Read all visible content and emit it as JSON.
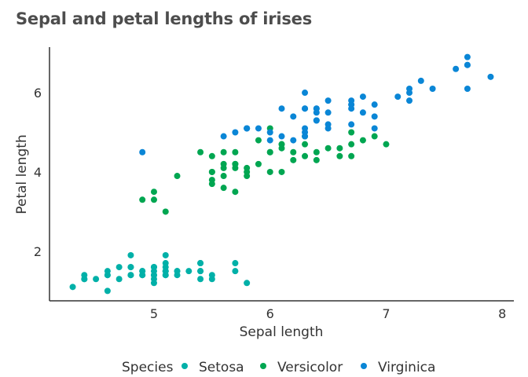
{
  "chart_data": {
    "type": "scatter",
    "title": "Sepal and petal lengths of irises",
    "xlabel": "Sepal length",
    "ylabel": "Petal length",
    "xlim": [
      4.1,
      8.1
    ],
    "ylim": [
      0.75,
      7.15
    ],
    "x_ticks": [
      5,
      6,
      7,
      8
    ],
    "y_ticks": [
      2,
      4,
      6
    ],
    "grid": false,
    "legend": {
      "title": "Species",
      "placement": "bottom"
    },
    "series": [
      {
        "name": "Setosa",
        "color": "#00b0a8",
        "points": [
          [
            5.1,
            1.4
          ],
          [
            4.9,
            1.4
          ],
          [
            4.7,
            1.3
          ],
          [
            4.6,
            1.5
          ],
          [
            5.0,
            1.4
          ],
          [
            5.4,
            1.7
          ],
          [
            4.6,
            1.4
          ],
          [
            5.0,
            1.5
          ],
          [
            4.4,
            1.4
          ],
          [
            4.9,
            1.5
          ],
          [
            5.4,
            1.5
          ],
          [
            4.8,
            1.6
          ],
          [
            4.8,
            1.4
          ],
          [
            4.3,
            1.1
          ],
          [
            5.8,
            1.2
          ],
          [
            5.7,
            1.5
          ],
          [
            5.4,
            1.3
          ],
          [
            5.1,
            1.4
          ],
          [
            5.7,
            1.7
          ],
          [
            5.1,
            1.5
          ],
          [
            5.4,
            1.7
          ],
          [
            5.1,
            1.5
          ],
          [
            4.6,
            1.0
          ],
          [
            5.1,
            1.7
          ],
          [
            4.8,
            1.9
          ],
          [
            5.0,
            1.6
          ],
          [
            5.0,
            1.6
          ],
          [
            5.2,
            1.5
          ],
          [
            5.2,
            1.4
          ],
          [
            4.7,
            1.6
          ],
          [
            4.8,
            1.6
          ],
          [
            5.4,
            1.5
          ],
          [
            5.2,
            1.5
          ],
          [
            5.5,
            1.4
          ],
          [
            4.9,
            1.5
          ],
          [
            5.0,
            1.2
          ],
          [
            5.5,
            1.3
          ],
          [
            4.9,
            1.4
          ],
          [
            4.4,
            1.3
          ],
          [
            5.1,
            1.5
          ],
          [
            5.0,
            1.3
          ],
          [
            4.5,
            1.3
          ],
          [
            4.4,
            1.3
          ],
          [
            5.0,
            1.6
          ],
          [
            5.1,
            1.9
          ],
          [
            4.8,
            1.4
          ],
          [
            5.1,
            1.6
          ],
          [
            4.6,
            1.4
          ],
          [
            5.3,
            1.5
          ],
          [
            5.0,
            1.4
          ]
        ]
      },
      {
        "name": "Versicolor",
        "color": "#00a651",
        "points": [
          [
            7.0,
            4.7
          ],
          [
            6.4,
            4.5
          ],
          [
            6.9,
            4.9
          ],
          [
            5.5,
            4.0
          ],
          [
            6.5,
            4.6
          ],
          [
            5.7,
            4.5
          ],
          [
            6.3,
            4.7
          ],
          [
            4.9,
            3.3
          ],
          [
            6.6,
            4.6
          ],
          [
            5.2,
            3.9
          ],
          [
            5.0,
            3.5
          ],
          [
            5.9,
            4.2
          ],
          [
            6.0,
            4.0
          ],
          [
            6.1,
            4.7
          ],
          [
            5.6,
            3.6
          ],
          [
            6.7,
            4.4
          ],
          [
            5.6,
            4.5
          ],
          [
            5.8,
            4.1
          ],
          [
            6.2,
            4.5
          ],
          [
            5.6,
            3.9
          ],
          [
            5.9,
            4.8
          ],
          [
            6.1,
            4.0
          ],
          [
            6.3,
            4.9
          ],
          [
            6.1,
            4.7
          ],
          [
            6.4,
            4.3
          ],
          [
            6.6,
            4.4
          ],
          [
            6.8,
            4.8
          ],
          [
            6.7,
            5.0
          ],
          [
            6.0,
            4.5
          ],
          [
            5.7,
            3.5
          ],
          [
            5.5,
            3.8
          ],
          [
            5.5,
            3.7
          ],
          [
            5.8,
            3.9
          ],
          [
            6.0,
            5.1
          ],
          [
            5.4,
            4.5
          ],
          [
            6.0,
            4.5
          ],
          [
            6.7,
            4.7
          ],
          [
            6.3,
            4.4
          ],
          [
            5.6,
            4.1
          ],
          [
            5.5,
            4.0
          ],
          [
            5.5,
            4.4
          ],
          [
            6.1,
            4.6
          ],
          [
            5.8,
            4.0
          ],
          [
            5.0,
            3.3
          ],
          [
            5.6,
            4.2
          ],
          [
            5.7,
            4.2
          ],
          [
            5.7,
            4.2
          ],
          [
            6.2,
            4.3
          ],
          [
            5.1,
            3.0
          ],
          [
            5.7,
            4.1
          ]
        ]
      },
      {
        "name": "Virginica",
        "color": "#0a86d6",
        "points": [
          [
            6.3,
            6.0
          ],
          [
            5.8,
            5.1
          ],
          [
            7.1,
            5.9
          ],
          [
            6.3,
            5.6
          ],
          [
            6.5,
            5.8
          ],
          [
            7.6,
            6.6
          ],
          [
            4.9,
            4.5
          ],
          [
            7.3,
            6.3
          ],
          [
            6.7,
            5.8
          ],
          [
            7.2,
            6.1
          ],
          [
            6.5,
            5.1
          ],
          [
            6.4,
            5.3
          ],
          [
            6.8,
            5.5
          ],
          [
            5.7,
            5.0
          ],
          [
            5.8,
            5.1
          ],
          [
            6.4,
            5.3
          ],
          [
            6.5,
            5.5
          ],
          [
            7.7,
            6.7
          ],
          [
            7.7,
            6.9
          ],
          [
            6.0,
            5.0
          ],
          [
            6.9,
            5.7
          ],
          [
            5.6,
            4.9
          ],
          [
            7.7,
            6.7
          ],
          [
            6.3,
            4.9
          ],
          [
            6.7,
            5.7
          ],
          [
            7.2,
            6.0
          ],
          [
            6.2,
            4.8
          ],
          [
            6.1,
            4.9
          ],
          [
            6.4,
            5.6
          ],
          [
            7.2,
            5.8
          ],
          [
            7.4,
            6.1
          ],
          [
            7.9,
            6.4
          ],
          [
            6.4,
            5.6
          ],
          [
            6.3,
            5.1
          ],
          [
            6.1,
            5.6
          ],
          [
            7.7,
            6.1
          ],
          [
            6.3,
            5.6
          ],
          [
            6.4,
            5.5
          ],
          [
            6.0,
            4.8
          ],
          [
            6.9,
            5.4
          ],
          [
            6.7,
            5.6
          ],
          [
            6.9,
            5.1
          ],
          [
            5.8,
            5.1
          ],
          [
            6.8,
            5.9
          ],
          [
            6.7,
            5.7
          ],
          [
            6.7,
            5.2
          ],
          [
            6.3,
            5.0
          ],
          [
            6.5,
            5.2
          ],
          [
            6.2,
            5.4
          ],
          [
            5.9,
            5.1
          ]
        ]
      }
    ]
  }
}
